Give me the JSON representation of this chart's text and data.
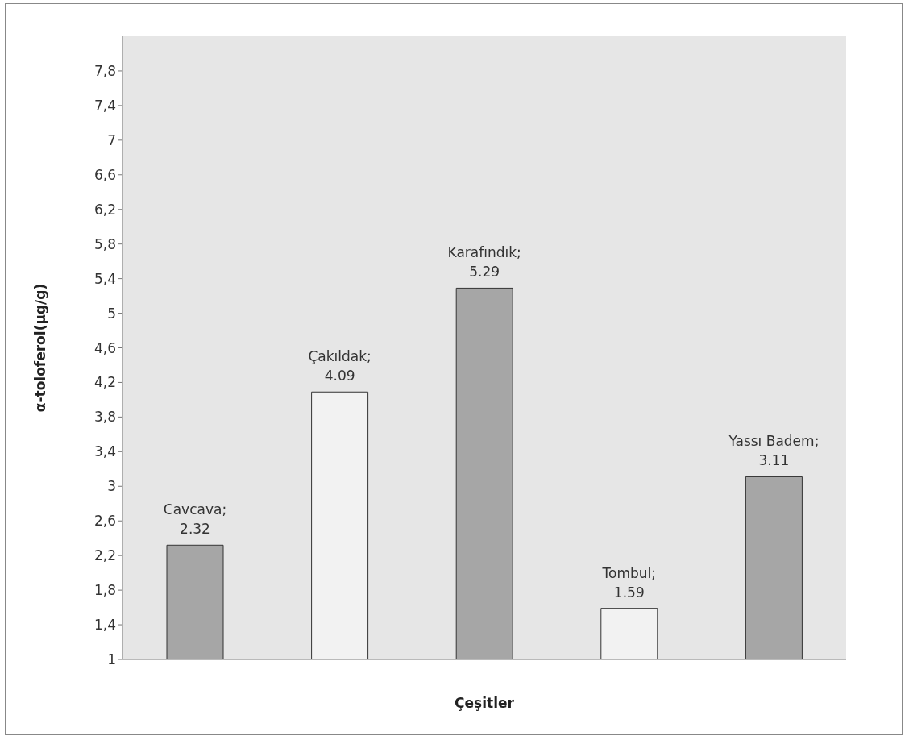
{
  "chart_data": {
    "type": "bar",
    "xlabel": "Çeşitler",
    "ylabel": "α-toloferol(µg/g)",
    "categories": [
      null,
      null,
      null,
      null,
      null
    ],
    "values": [
      2.32,
      4.09,
      5.29,
      1.59,
      3.11
    ],
    "colors": [
      "#a6a6a6",
      "#f2f2f2",
      "#a6a6a6",
      "#f2f2f2",
      "#a6a6a6"
    ],
    "value_labels": [
      "Cavcava; 2.32",
      "Çakıldak; 4.09",
      "Karafındık; 5.29",
      "Tombul; 1.59",
      "Yassı Badem; 3.11"
    ],
    "ylim": [
      1,
      8.2
    ],
    "yticks": [
      1,
      {
        "value": 1.4,
        "label": "1,4"
      },
      {
        "value": 1.8,
        "label": "1,8"
      },
      {
        "value": 2.2,
        "label": "2,2"
      },
      {
        "value": 2.6,
        "label": "2,6"
      },
      3,
      {
        "value": 3.4,
        "label": "3,4"
      },
      {
        "value": 3.8,
        "label": "3,8"
      },
      {
        "value": 4.2,
        "label": "4,2"
      },
      {
        "value": 4.6,
        "label": "4,6"
      },
      5,
      {
        "value": 5.4,
        "label": "5,4"
      },
      {
        "value": 5.8,
        "label": "5,8"
      },
      {
        "value": 6.2,
        "label": "6,2"
      },
      {
        "value": 6.6,
        "label": "6,6"
      },
      7,
      {
        "value": 7.4,
        "label": "7,4"
      },
      {
        "value": 7.8,
        "label": "7,8"
      }
    ],
    "tick_labels": "y",
    "grid": false,
    "legend": false
  }
}
